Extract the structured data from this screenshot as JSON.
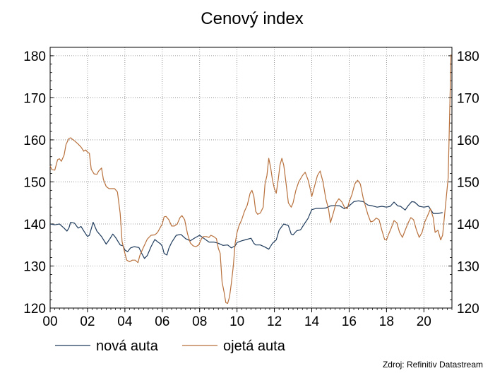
{
  "chart_data": {
    "type": "line",
    "title": "Cenový index",
    "xlabel": "",
    "ylabel": "",
    "x_tick_labels": [
      "00",
      "02",
      "04",
      "06",
      "08",
      "10",
      "12",
      "14",
      "16",
      "18",
      "20"
    ],
    "x_tick_values": [
      2000,
      2002,
      2004,
      2006,
      2008,
      2010,
      2012,
      2014,
      2016,
      2018,
      2020
    ],
    "xlim": [
      2000,
      2021.5
    ],
    "ylim": [
      120,
      182
    ],
    "y_ticks": [
      120,
      130,
      140,
      150,
      160,
      170,
      180
    ],
    "y_tick_labels": [
      "120",
      "130",
      "140",
      "150",
      "160",
      "170",
      "180"
    ],
    "y_axes": "left-and-right",
    "grid": true,
    "legend": "bottom",
    "source": "Zdroj: Refinitiv Datastream",
    "series": [
      {
        "name": "nová auta",
        "color": "#1f3b5c",
        "points": [
          [
            2000.0,
            140.0
          ],
          [
            2000.25,
            139.8
          ],
          [
            2000.5,
            140.0
          ],
          [
            2000.75,
            139.0
          ],
          [
            2000.9,
            138.3
          ],
          [
            2001.0,
            139.0
          ],
          [
            2001.1,
            140.4
          ],
          [
            2001.3,
            140.2
          ],
          [
            2001.5,
            139.0
          ],
          [
            2001.65,
            139.4
          ],
          [
            2001.85,
            138.0
          ],
          [
            2002.0,
            137.0
          ],
          [
            2002.1,
            137.3
          ],
          [
            2002.3,
            140.4
          ],
          [
            2002.5,
            138.3
          ],
          [
            2002.75,
            137.0
          ],
          [
            2003.0,
            135.2
          ],
          [
            2003.2,
            136.5
          ],
          [
            2003.35,
            137.6
          ],
          [
            2003.5,
            136.8
          ],
          [
            2003.75,
            135.0
          ],
          [
            2003.9,
            134.8
          ],
          [
            2004.0,
            133.8
          ],
          [
            2004.15,
            133.4
          ],
          [
            2004.3,
            134.3
          ],
          [
            2004.5,
            134.6
          ],
          [
            2004.75,
            134.4
          ],
          [
            2004.9,
            133.0
          ],
          [
            2005.05,
            131.8
          ],
          [
            2005.2,
            132.5
          ],
          [
            2005.4,
            134.6
          ],
          [
            2005.6,
            136.3
          ],
          [
            2005.8,
            135.6
          ],
          [
            2005.9,
            135.3
          ],
          [
            2006.0,
            134.7
          ],
          [
            2006.1,
            133.0
          ],
          [
            2006.25,
            132.6
          ],
          [
            2006.35,
            134.2
          ],
          [
            2006.5,
            135.6
          ],
          [
            2006.75,
            137.3
          ],
          [
            2007.0,
            137.5
          ],
          [
            2007.25,
            136.5
          ],
          [
            2007.5,
            136.0
          ],
          [
            2007.75,
            136.7
          ],
          [
            2008.0,
            137.3
          ],
          [
            2008.25,
            136.5
          ],
          [
            2008.5,
            135.7
          ],
          [
            2008.75,
            135.7
          ],
          [
            2009.0,
            135.4
          ],
          [
            2009.25,
            134.9
          ],
          [
            2009.5,
            135.0
          ],
          [
            2009.7,
            134.3
          ],
          [
            2009.9,
            134.8
          ],
          [
            2010.0,
            135.6
          ],
          [
            2010.25,
            136.0
          ],
          [
            2010.5,
            136.3
          ],
          [
            2010.75,
            136.6
          ],
          [
            2010.9,
            135.4
          ],
          [
            2011.0,
            135.0
          ],
          [
            2011.25,
            135.0
          ],
          [
            2011.5,
            134.5
          ],
          [
            2011.7,
            134.0
          ],
          [
            2011.9,
            135.4
          ],
          [
            2012.1,
            136.2
          ],
          [
            2012.25,
            138.5
          ],
          [
            2012.5,
            140.0
          ],
          [
            2012.75,
            139.6
          ],
          [
            2012.9,
            137.6
          ],
          [
            2013.0,
            137.4
          ],
          [
            2013.2,
            138.4
          ],
          [
            2013.4,
            138.6
          ],
          [
            2013.6,
            140.0
          ],
          [
            2013.8,
            141.3
          ],
          [
            2014.0,
            143.4
          ],
          [
            2014.25,
            143.7
          ],
          [
            2014.5,
            143.7
          ],
          [
            2014.75,
            143.8
          ],
          [
            2015.0,
            144.3
          ],
          [
            2015.25,
            144.4
          ],
          [
            2015.5,
            144.3
          ],
          [
            2015.75,
            143.6
          ],
          [
            2016.0,
            144.3
          ],
          [
            2016.25,
            145.3
          ],
          [
            2016.5,
            145.5
          ],
          [
            2016.75,
            145.3
          ],
          [
            2017.0,
            144.5
          ],
          [
            2017.25,
            144.3
          ],
          [
            2017.5,
            144.0
          ],
          [
            2017.75,
            144.2
          ],
          [
            2018.0,
            144.0
          ],
          [
            2018.2,
            144.2
          ],
          [
            2018.4,
            145.2
          ],
          [
            2018.6,
            144.3
          ],
          [
            2018.75,
            144.2
          ],
          [
            2019.0,
            143.3
          ],
          [
            2019.15,
            144.3
          ],
          [
            2019.35,
            145.3
          ],
          [
            2019.5,
            145.2
          ],
          [
            2019.75,
            144.2
          ],
          [
            2020.0,
            144.0
          ],
          [
            2020.25,
            144.2
          ],
          [
            2020.5,
            142.5
          ],
          [
            2020.75,
            142.5
          ],
          [
            2021.0,
            142.7
          ]
        ]
      },
      {
        "name": "ojetá auta",
        "color": "#b8703c",
        "points": [
          [
            2000.0,
            153.8
          ],
          [
            2000.1,
            152.9
          ],
          [
            2000.25,
            152.8
          ],
          [
            2000.4,
            155.3
          ],
          [
            2000.5,
            155.5
          ],
          [
            2000.6,
            154.9
          ],
          [
            2000.75,
            156.4
          ],
          [
            2000.85,
            158.9
          ],
          [
            2001.0,
            160.3
          ],
          [
            2001.1,
            160.5
          ],
          [
            2001.2,
            160.1
          ],
          [
            2001.35,
            159.6
          ],
          [
            2001.5,
            159.0
          ],
          [
            2001.65,
            158.3
          ],
          [
            2001.8,
            157.3
          ],
          [
            2001.9,
            157.6
          ],
          [
            2002.0,
            157.1
          ],
          [
            2002.1,
            156.8
          ],
          [
            2002.2,
            153.0
          ],
          [
            2002.35,
            151.9
          ],
          [
            2002.5,
            151.8
          ],
          [
            2002.6,
            152.6
          ],
          [
            2002.75,
            153.3
          ],
          [
            2002.85,
            150.6
          ],
          [
            2003.0,
            148.9
          ],
          [
            2003.15,
            148.4
          ],
          [
            2003.3,
            148.4
          ],
          [
            2003.45,
            148.4
          ],
          [
            2003.6,
            147.6
          ],
          [
            2003.75,
            142.5
          ],
          [
            2003.85,
            135.8
          ],
          [
            2004.0,
            133.0
          ],
          [
            2004.1,
            131.4
          ],
          [
            2004.25,
            131.0
          ],
          [
            2004.4,
            131.4
          ],
          [
            2004.55,
            131.4
          ],
          [
            2004.7,
            130.8
          ],
          [
            2004.8,
            132.5
          ],
          [
            2005.0,
            134.5
          ],
          [
            2005.2,
            136.4
          ],
          [
            2005.4,
            137.3
          ],
          [
            2005.6,
            137.4
          ],
          [
            2005.75,
            138.0
          ],
          [
            2005.9,
            139.2
          ],
          [
            2006.0,
            140.0
          ],
          [
            2006.1,
            141.7
          ],
          [
            2006.2,
            141.8
          ],
          [
            2006.35,
            141.0
          ],
          [
            2006.5,
            139.5
          ],
          [
            2006.65,
            139.5
          ],
          [
            2006.8,
            140.0
          ],
          [
            2006.95,
            141.5
          ],
          [
            2007.05,
            142.0
          ],
          [
            2007.2,
            141.0
          ],
          [
            2007.35,
            137.7
          ],
          [
            2007.5,
            135.5
          ],
          [
            2007.65,
            134.8
          ],
          [
            2007.8,
            134.6
          ],
          [
            2007.95,
            135.0
          ],
          [
            2008.1,
            136.5
          ],
          [
            2008.2,
            137.0
          ],
          [
            2008.35,
            137.0
          ],
          [
            2008.5,
            136.8
          ],
          [
            2008.6,
            137.3
          ],
          [
            2008.75,
            137.0
          ],
          [
            2008.9,
            136.5
          ],
          [
            2009.0,
            134.2
          ],
          [
            2009.1,
            133.0
          ],
          [
            2009.2,
            126.2
          ],
          [
            2009.3,
            124.0
          ],
          [
            2009.4,
            121.3
          ],
          [
            2009.5,
            121.1
          ],
          [
            2009.6,
            122.7
          ],
          [
            2009.7,
            126.0
          ],
          [
            2009.8,
            130.0
          ],
          [
            2009.9,
            135.4
          ],
          [
            2010.0,
            138.0
          ],
          [
            2010.1,
            139.5
          ],
          [
            2010.25,
            141.0
          ],
          [
            2010.4,
            143.0
          ],
          [
            2010.55,
            144.5
          ],
          [
            2010.7,
            147.3
          ],
          [
            2010.8,
            148.0
          ],
          [
            2010.9,
            146.6
          ],
          [
            2011.0,
            143.0
          ],
          [
            2011.1,
            142.3
          ],
          [
            2011.25,
            142.6
          ],
          [
            2011.4,
            144.0
          ],
          [
            2011.5,
            149.5
          ],
          [
            2011.6,
            151.5
          ],
          [
            2011.7,
            155.6
          ],
          [
            2011.8,
            153.4
          ],
          [
            2011.9,
            150.4
          ],
          [
            2012.0,
            148.4
          ],
          [
            2012.1,
            147.3
          ],
          [
            2012.2,
            150.4
          ],
          [
            2012.3,
            154.0
          ],
          [
            2012.4,
            155.6
          ],
          [
            2012.5,
            154.0
          ],
          [
            2012.6,
            150.5
          ],
          [
            2012.75,
            145.0
          ],
          [
            2012.9,
            144.0
          ],
          [
            2013.0,
            145.0
          ],
          [
            2013.15,
            148.0
          ],
          [
            2013.3,
            150.0
          ],
          [
            2013.5,
            151.5
          ],
          [
            2013.65,
            152.3
          ],
          [
            2013.8,
            150.5
          ],
          [
            2013.9,
            148.7
          ],
          [
            2014.0,
            146.5
          ],
          [
            2014.15,
            149.0
          ],
          [
            2014.3,
            151.5
          ],
          [
            2014.45,
            152.6
          ],
          [
            2014.6,
            150.0
          ],
          [
            2014.75,
            146.0
          ],
          [
            2014.9,
            143.5
          ],
          [
            2015.0,
            140.3
          ],
          [
            2015.15,
            142.5
          ],
          [
            2015.3,
            145.0
          ],
          [
            2015.45,
            146.0
          ],
          [
            2015.6,
            145.3
          ],
          [
            2015.75,
            144.0
          ],
          [
            2015.9,
            143.6
          ],
          [
            2016.0,
            145.2
          ],
          [
            2016.15,
            147.0
          ],
          [
            2016.3,
            149.5
          ],
          [
            2016.45,
            150.4
          ],
          [
            2016.6,
            149.5
          ],
          [
            2016.75,
            146.2
          ],
          [
            2016.9,
            143.8
          ],
          [
            2017.0,
            142.3
          ],
          [
            2017.15,
            140.5
          ],
          [
            2017.3,
            140.7
          ],
          [
            2017.45,
            141.4
          ],
          [
            2017.6,
            141.0
          ],
          [
            2017.75,
            138.5
          ],
          [
            2017.9,
            136.3
          ],
          [
            2018.0,
            136.2
          ],
          [
            2018.1,
            137.4
          ],
          [
            2018.25,
            139.0
          ],
          [
            2018.4,
            140.8
          ],
          [
            2018.55,
            140.3
          ],
          [
            2018.7,
            138.0
          ],
          [
            2018.85,
            136.8
          ],
          [
            2019.0,
            138.5
          ],
          [
            2019.15,
            140.2
          ],
          [
            2019.3,
            141.5
          ],
          [
            2019.45,
            141.0
          ],
          [
            2019.6,
            138.6
          ],
          [
            2019.75,
            136.8
          ],
          [
            2019.9,
            138.0
          ],
          [
            2020.05,
            140.5
          ],
          [
            2020.2,
            142.0
          ],
          [
            2020.35,
            143.6
          ],
          [
            2020.5,
            141.5
          ],
          [
            2020.6,
            138.0
          ],
          [
            2020.75,
            138.5
          ],
          [
            2020.9,
            136.2
          ],
          [
            2021.0,
            137.3
          ],
          [
            2021.15,
            144.0
          ],
          [
            2021.3,
            151.0
          ],
          [
            2021.45,
            180.3
          ]
        ]
      }
    ]
  }
}
